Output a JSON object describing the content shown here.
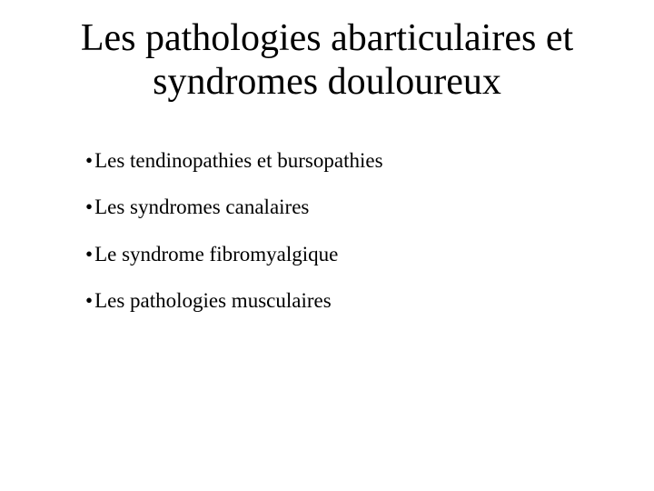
{
  "slide": {
    "title_line1": "Les pathologies abarticulaires et",
    "title_line2": "syndromes douloureux",
    "title_fontsize": 42,
    "title_color": "#000000",
    "bullets": [
      "Les tendinopathies et bursopathies",
      "Les syndromes canalaires",
      "Le syndrome fibromyalgique",
      "Les pathologies musculaires"
    ],
    "bullet_fontsize": 23,
    "bullet_color": "#000000",
    "bullet_marker": "•",
    "background_color": "#ffffff",
    "font_family": "Times New Roman"
  }
}
